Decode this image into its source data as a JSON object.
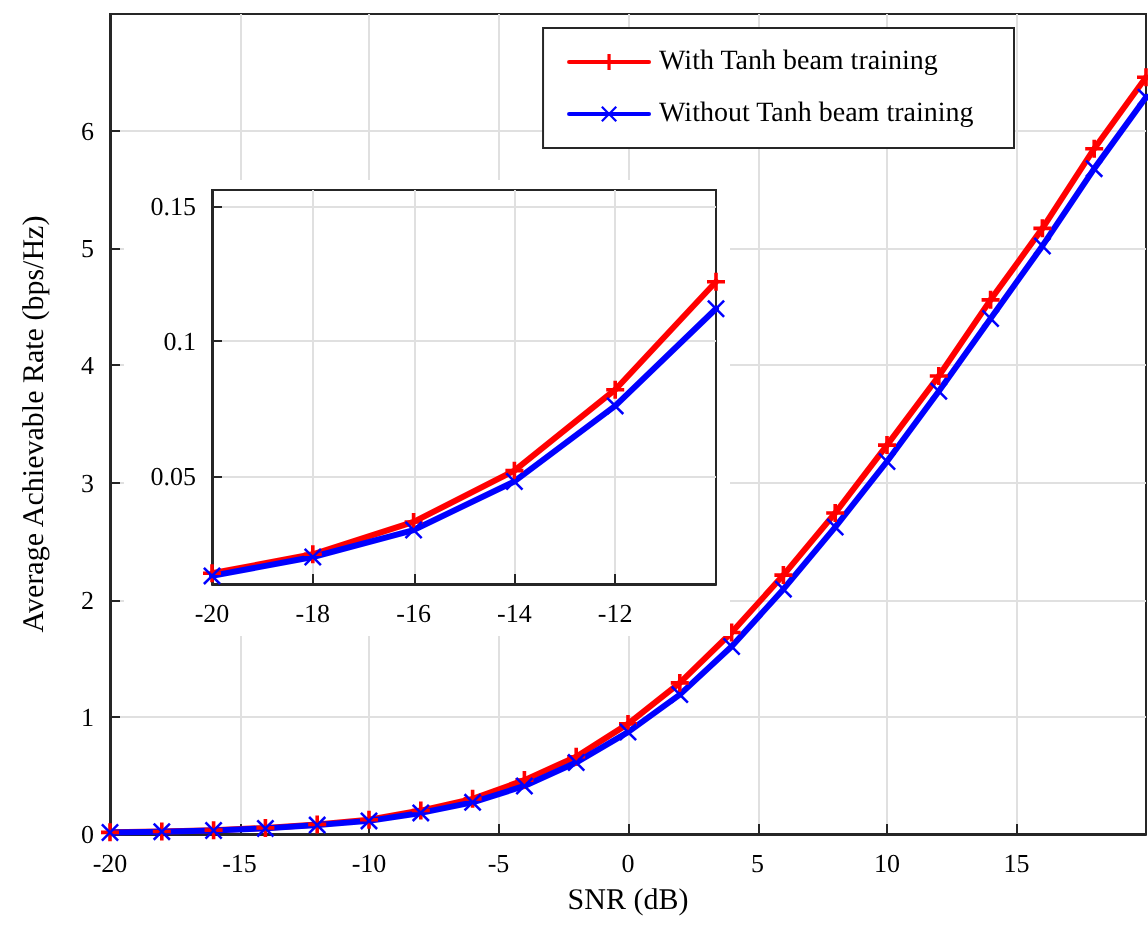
{
  "chart_data": [
    {
      "type": "line",
      "xlabel": "SNR (dB)",
      "ylabel": "Average Achievable Rate (bps/Hz)",
      "x": [
        -20,
        -18,
        -16,
        -14,
        -12,
        -10,
        -8,
        -6,
        -4,
        -2,
        0,
        2,
        4,
        6,
        8,
        10,
        12,
        14,
        16,
        18,
        20
      ],
      "series": [
        {
          "name": "With Tanh beam training",
          "color": "#ff0000",
          "marker": "plus",
          "values": [
            0.014,
            0.021,
            0.033,
            0.052,
            0.082,
            0.122,
            0.2,
            0.3,
            0.46,
            0.66,
            0.94,
            1.29,
            1.72,
            2.21,
            2.74,
            3.32,
            3.91,
            4.56,
            5.17,
            5.85,
            6.46
          ]
        },
        {
          "name": "Without Tanh beam training",
          "color": "#0000ff",
          "marker": "cross",
          "values": [
            0.013,
            0.02,
            0.03,
            0.048,
            0.076,
            0.112,
            0.18,
            0.27,
            0.41,
            0.61,
            0.87,
            1.19,
            1.6,
            2.09,
            2.62,
            3.18,
            3.78,
            4.4,
            5.02,
            5.68,
            6.29
          ]
        }
      ],
      "xlim": [
        -20,
        20
      ],
      "xticks": [
        -20,
        -15,
        -10,
        -5,
        0,
        5,
        10,
        15
      ],
      "ylim": [
        0,
        7
      ],
      "yticks": [
        0,
        1,
        2,
        3,
        4,
        5,
        6
      ],
      "grid": true,
      "legend": "top right",
      "line_style": "solid"
    },
    {
      "type": "line",
      "x": [
        -20,
        -18,
        -16,
        -14,
        -12,
        -10
      ],
      "series": [
        {
          "color": "#ff0000",
          "marker": "plus",
          "values": [
            0.014,
            0.021,
            0.033,
            0.052,
            0.082,
            0.122
          ]
        },
        {
          "color": "#0000ff",
          "marker": "cross",
          "values": [
            0.013,
            0.02,
            0.03,
            0.048,
            0.076,
            0.112
          ]
        }
      ],
      "xlim": [
        -20,
        -10
      ],
      "xticks": [
        -20,
        -18,
        -16,
        -14,
        -12
      ],
      "ylim": [
        0.01,
        0.156
      ],
      "yticks": [
        0.05,
        0.1,
        0.15
      ],
      "grid": true,
      "line_style": "solid"
    }
  ]
}
